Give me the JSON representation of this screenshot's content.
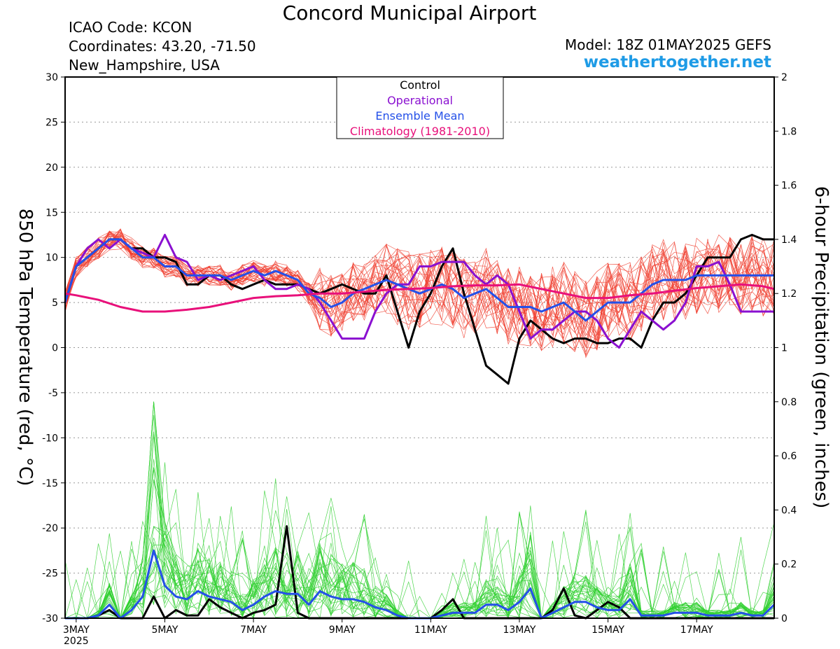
{
  "header": {
    "title": "Concord Municipal Airport",
    "icao": "ICAO Code: KCON",
    "coords": "Coordinates: 43.20, -71.50",
    "region": "New_Hampshire, USA",
    "model": "Model: 18Z 01MAY2025 GEFS",
    "website": "weathertogether.net"
  },
  "chart_data": {
    "type": "line",
    "ylabel": "850 hPa Temperature (red, °C)",
    "y2label": "6-hour Precipitation (green, inches)",
    "ylim": [
      -30,
      30
    ],
    "y2lim": [
      0,
      2
    ],
    "yticks": [
      -30,
      -25,
      -20,
      -15,
      -10,
      -5,
      0,
      5,
      10,
      15,
      20,
      25,
      30
    ],
    "y2ticks": [
      0,
      0.2,
      0.4,
      0.6,
      0.8,
      1,
      1.2,
      1.4,
      1.6,
      1.8,
      2
    ],
    "x_unit": "days since 01MAY2025 00Z",
    "xlim": [
      1.75,
      17.75
    ],
    "xticks": [
      {
        "x": 2,
        "label": "3MAY",
        "sub": "2025"
      },
      {
        "x": 4,
        "label": "5MAY"
      },
      {
        "x": 6,
        "label": "7MAY"
      },
      {
        "x": 8,
        "label": "9MAY"
      },
      {
        "x": 10,
        "label": "11MAY"
      },
      {
        "x": 12,
        "label": "13MAY"
      },
      {
        "x": 14,
        "label": "15MAY"
      },
      {
        "x": 16,
        "label": "17MAY"
      }
    ],
    "grid": "horizontal dotted",
    "legend": {
      "placement": "top-center",
      "entries": [
        {
          "label": "Control",
          "color": "#000000"
        },
        {
          "label": "Operational",
          "color": "#8a10d0"
        },
        {
          "label": "Ensemble Mean",
          "color": "#2450e8"
        },
        {
          "label": "Climatology (1981-2010)",
          "color": "#e8107a"
        }
      ]
    },
    "colors": {
      "control": "#000000",
      "operational": "#8a10d0",
      "ensemble_mean": "#2450e8",
      "climatology": "#e8107a",
      "members_temp": "#f04030",
      "members_precip": "#30d030"
    },
    "temp_series": [
      {
        "name": "Control",
        "x": [
          1.75,
          2,
          2.25,
          2.5,
          2.75,
          3,
          3.25,
          3.5,
          3.75,
          4,
          4.25,
          4.5,
          4.75,
          5,
          5.25,
          5.5,
          5.75,
          6,
          6.25,
          6.5,
          6.75,
          7,
          7.25,
          7.5,
          7.75,
          8,
          8.25,
          8.5,
          8.75,
          9,
          9.25,
          9.5,
          9.75,
          10,
          10.25,
          10.5,
          10.75,
          11,
          11.25,
          11.5,
          11.75,
          12,
          12.25,
          12.5,
          12.75,
          13,
          13.25,
          13.5,
          13.75,
          14,
          14.25,
          14.5,
          14.75,
          15,
          15.25,
          15.5,
          15.75,
          16,
          16.25,
          16.5,
          16.75,
          17,
          17.25,
          17.5,
          17.75
        ],
        "y": [
          5,
          9,
          10,
          11,
          12,
          12,
          11,
          11,
          10,
          10,
          9.5,
          7,
          7,
          8,
          8,
          7,
          6.5,
          7,
          7.5,
          7,
          7,
          7,
          6.5,
          6,
          6.5,
          7,
          6.5,
          6,
          6,
          8,
          4,
          0,
          4,
          6,
          9,
          11,
          6,
          2,
          -2,
          -3,
          -4,
          1,
          3,
          2,
          1,
          0.5,
          1,
          1,
          0.5,
          0.5,
          1,
          1,
          0,
          3,
          5,
          5,
          6,
          8,
          10,
          10,
          10,
          12,
          12.5,
          12,
          12
        ]
      },
      {
        "name": "Operational",
        "x": [
          1.75,
          2,
          2.25,
          2.5,
          2.75,
          3,
          3.25,
          3.5,
          3.75,
          4,
          4.25,
          4.5,
          4.75,
          5,
          5.25,
          5.5,
          5.75,
          6,
          6.25,
          6.5,
          6.75,
          7,
          7.25,
          7.5,
          7.75,
          8,
          8.25,
          8.5,
          8.75,
          9,
          9.25,
          9.5,
          9.75,
          10,
          10.25,
          10.5,
          10.75,
          11,
          11.25,
          11.5,
          11.75,
          12,
          12.25,
          12.5,
          12.75,
          13,
          13.25,
          13.5,
          13.75,
          14,
          14.25,
          14.5,
          14.75,
          15,
          15.25,
          15.5,
          15.75,
          16,
          16.25,
          16.5,
          16.75,
          17,
          17.25,
          17.5,
          17.75
        ],
        "y": [
          5,
          9,
          11,
          12,
          11,
          12,
          11,
          10.5,
          10,
          12.5,
          10,
          9.5,
          7.5,
          8,
          7.5,
          8,
          8.5,
          9,
          7.5,
          6.5,
          6.5,
          7,
          6.5,
          5,
          3,
          1,
          1,
          1,
          4,
          6,
          7,
          7,
          9,
          9,
          9.5,
          9.5,
          9.5,
          8,
          7,
          8,
          7,
          4,
          1,
          2,
          2,
          3,
          4,
          4,
          3,
          1,
          0,
          2,
          4,
          3,
          2,
          3,
          5,
          9,
          9,
          9.5,
          7,
          4,
          4,
          4,
          4
        ]
      },
      {
        "name": "Ensemble Mean",
        "x": [
          1.75,
          2,
          2.25,
          2.5,
          2.75,
          3,
          3.25,
          3.5,
          3.75,
          4,
          4.25,
          4.5,
          4.75,
          5,
          5.25,
          5.5,
          5.75,
          6,
          6.25,
          6.5,
          6.75,
          7,
          7.25,
          7.5,
          7.75,
          8,
          8.25,
          8.5,
          8.75,
          9,
          9.25,
          9.5,
          9.75,
          10,
          10.25,
          10.5,
          10.75,
          11,
          11.25,
          11.5,
          11.75,
          12,
          12.25,
          12.5,
          12.75,
          13,
          13.25,
          13.5,
          13.75,
          14,
          14.25,
          14.5,
          14.75,
          15,
          15.25,
          15.5,
          15.75,
          16,
          16.25,
          16.5,
          16.75,
          17,
          17.25,
          17.5,
          17.75
        ],
        "y": [
          5,
          9,
          10,
          11,
          12,
          12,
          11,
          10,
          10,
          9,
          9,
          8,
          8,
          8,
          8,
          7.5,
          8,
          8.5,
          8,
          8.5,
          8,
          7.5,
          6,
          5.5,
          4.5,
          5,
          6,
          6.5,
          7,
          7.5,
          7,
          6.5,
          6,
          6.5,
          7,
          6.5,
          5.5,
          6,
          6.5,
          5.5,
          4.5,
          4.5,
          4.5,
          4,
          4.5,
          5,
          4,
          3,
          4,
          5,
          5,
          5,
          6,
          7,
          7.5,
          7.5,
          7.5,
          8,
          8,
          8,
          8,
          8,
          8,
          8,
          8
        ]
      },
      {
        "name": "Climatology (1981-2010)",
        "x": [
          1.75,
          2,
          2.5,
          3,
          3.5,
          4,
          4.5,
          5,
          5.5,
          6,
          6.5,
          7,
          7.5,
          8,
          8.5,
          9,
          9.5,
          10,
          10.5,
          11,
          11.5,
          12,
          12.5,
          13,
          13.5,
          14,
          14.5,
          15,
          15.5,
          16,
          16.5,
          17,
          17.5,
          17.75
        ],
        "y": [
          6,
          5.8,
          5.3,
          4.5,
          4,
          4,
          4.2,
          4.5,
          5,
          5.5,
          5.7,
          5.8,
          6,
          6,
          6.2,
          6.4,
          6.5,
          6.6,
          6.8,
          6.9,
          6.9,
          7,
          6.5,
          6,
          5.5,
          5.5,
          5.8,
          6,
          6.3,
          6.6,
          6.8,
          7,
          6.8,
          6.5
        ]
      }
    ],
    "precip_series": [
      {
        "name": "Control",
        "x": [
          1.75,
          2,
          2.25,
          2.5,
          2.75,
          3,
          3.25,
          3.5,
          3.75,
          4,
          4.25,
          4.5,
          4.75,
          5,
          5.25,
          5.5,
          5.75,
          6,
          6.25,
          6.5,
          6.75,
          7,
          7.25,
          7.5,
          7.75,
          8,
          8.25,
          8.5,
          8.75,
          9,
          9.25,
          9.5,
          9.75,
          10,
          10.25,
          10.5,
          10.75,
          11,
          11.25,
          11.5,
          11.75,
          12,
          12.25,
          12.5,
          12.75,
          13,
          13.25,
          13.5,
          13.75,
          14,
          14.25,
          14.5,
          14.75,
          15,
          15.25,
          15.5,
          15.75,
          16,
          16.25,
          16.5,
          16.75,
          17,
          17.25,
          17.5,
          17.75
        ],
        "y": [
          0,
          0,
          0,
          0.01,
          0.03,
          0,
          0,
          0,
          0.08,
          0,
          0.03,
          0.01,
          0.01,
          0.07,
          0.04,
          0.02,
          0,
          0.02,
          0.03,
          0.05,
          0.34,
          0.02,
          0,
          0,
          0,
          0,
          0,
          0,
          0,
          0,
          0,
          0,
          0,
          0,
          0.03,
          0.07,
          0,
          0,
          0,
          0,
          0,
          0,
          0,
          0,
          0.03,
          0.11,
          0.01,
          0,
          0.03,
          0.06,
          0.04,
          0,
          0,
          0,
          0,
          0,
          0,
          0,
          0,
          0,
          0,
          0,
          0,
          0,
          0
        ]
      },
      {
        "name": "Ensemble Mean",
        "x": [
          1.75,
          2,
          2.25,
          2.5,
          2.75,
          3,
          3.25,
          3.5,
          3.75,
          4,
          4.25,
          4.5,
          4.75,
          5,
          5.25,
          5.5,
          5.75,
          6,
          6.25,
          6.5,
          6.75,
          7,
          7.25,
          7.5,
          7.75,
          8,
          8.25,
          8.5,
          8.75,
          9,
          9.25,
          9.5,
          9.75,
          10,
          10.25,
          10.5,
          10.75,
          11,
          11.25,
          11.5,
          11.75,
          12,
          12.25,
          12.5,
          12.75,
          13,
          13.25,
          13.5,
          13.75,
          14,
          14.25,
          14.5,
          14.75,
          15,
          15.25,
          15.5,
          15.75,
          16,
          16.25,
          16.5,
          16.75,
          17,
          17.25,
          17.5,
          17.75
        ],
        "y": [
          0,
          0,
          0,
          0.01,
          0.05,
          0,
          0.03,
          0.08,
          0.25,
          0.12,
          0.08,
          0.07,
          0.1,
          0.08,
          0.07,
          0.06,
          0.03,
          0.05,
          0.08,
          0.1,
          0.09,
          0.09,
          0.05,
          0.1,
          0.08,
          0.07,
          0.07,
          0.06,
          0.04,
          0.03,
          0.01,
          0,
          0,
          0,
          0.01,
          0.02,
          0.02,
          0.02,
          0.05,
          0.05,
          0.03,
          0.06,
          0.11,
          0,
          0.02,
          0.04,
          0.06,
          0.06,
          0.04,
          0.03,
          0.03,
          0.07,
          0.01,
          0.01,
          0.01,
          0.02,
          0.02,
          0.02,
          0.01,
          0.01,
          0.01,
          0.02,
          0.01,
          0.01,
          0.05
        ]
      }
    ],
    "temp_members_count": 30,
    "precip_members_count": 30
  }
}
